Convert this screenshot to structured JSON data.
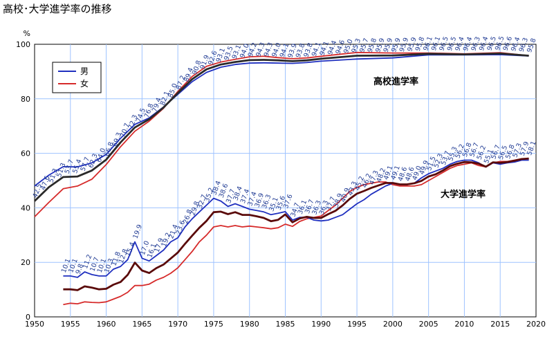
{
  "title": "高校･大学進学率の推移",
  "chart_data": {
    "type": "line",
    "ylabel": "%",
    "ylim": [
      0,
      100
    ],
    "xlim": [
      1950,
      2020
    ],
    "yticks": [
      0,
      20,
      40,
      60,
      80,
      100
    ],
    "xticks": [
      1950,
      1955,
      1960,
      1965,
      1970,
      1975,
      1980,
      1985,
      1990,
      1995,
      2000,
      2005,
      2010,
      2015,
      2020
    ],
    "grid": true,
    "legend": {
      "position": "top-left",
      "items": [
        {
          "name": "男",
          "color": "#1f2fbf"
        },
        {
          "name": "女",
          "color": "#d62a2a"
        }
      ]
    },
    "group_labels": {
      "high_school": "高校進学率",
      "university": "大学進学率"
    },
    "colors": {
      "male": "#1f2fbf",
      "female": "#d62a2a",
      "total": "#5a0a0a",
      "total_high": "#2a2a2a",
      "grid": "#9ec3ff",
      "plot_bg": "#ffffff"
    },
    "high_school": {
      "total": {
        "x": [
          1950,
          1952,
          1954,
          1956,
          1958,
          1960,
          1962,
          1964,
          1966,
          1968,
          1970,
          1972,
          1974,
          1976,
          1978,
          1980,
          1982,
          1984,
          1986,
          1988,
          1990,
          1995,
          2000,
          2005,
          2010,
          2015,
          2019
        ],
        "values": [
          42.5,
          47.6,
          51.3,
          51.5,
          53.7,
          57.7,
          64,
          69.5,
          72.5,
          76.8,
          82.1,
          87.2,
          90.8,
          92.6,
          93.5,
          94.2,
          94.3,
          94.1,
          93.8,
          94.1,
          94.7,
          95.8,
          95.9,
          96.5,
          96.3,
          96.6,
          95.8
        ]
      },
      "male": {
        "x": [
          1950,
          1952,
          1954,
          1956,
          1958,
          1960,
          1962,
          1964,
          1966,
          1968,
          1970,
          1972,
          1974,
          1976,
          1978,
          1980,
          1982,
          1984,
          1986,
          1988,
          1990,
          1995,
          2000,
          2005,
          2010,
          2015,
          2019
        ],
        "values": [
          48.0,
          52.0,
          55.1,
          55.0,
          56.5,
          59.6,
          65.5,
          70.6,
          73.0,
          77.0,
          81.6,
          86.3,
          89.7,
          91.6,
          92.6,
          93.1,
          93.2,
          93.1,
          93.0,
          93.3,
          93.8,
          94.6,
          95.0,
          96.1,
          96.1,
          96.2,
          95.7
        ]
      },
      "female": {
        "x": [
          1950,
          1952,
          1954,
          1956,
          1958,
          1960,
          1962,
          1964,
          1966,
          1968,
          1970,
          1972,
          1974,
          1976,
          1978,
          1980,
          1982,
          1984,
          1986,
          1988,
          1990,
          1995,
          2000,
          2005,
          2010,
          2015,
          2019
        ],
        "values": [
          36.7,
          42.0,
          47.0,
          48.0,
          50.5,
          55.9,
          62.4,
          68.1,
          71.8,
          76.5,
          82.7,
          88.2,
          91.9,
          93.5,
          94.5,
          95.4,
          95.6,
          95.1,
          94.7,
          95.0,
          95.6,
          97.0,
          96.8,
          96.8,
          96.5,
          96.9,
          95.8
        ]
      },
      "labels": [
        "42.5",
        "47.6",
        "51.3",
        "51.3",
        "53.7",
        "55.4",
        "57.7",
        "62.3",
        "64.0",
        "66.8",
        "69.3",
        "70.7",
        "72.3",
        "74.5",
        "76.8",
        "79.4",
        "82.1",
        "85.0",
        "87.2",
        "89.4",
        "90.8",
        "91.9",
        "92.6",
        "93.1",
        "93.5",
        "93.1",
        "94.0",
        "94.2",
        "94.3",
        "94.3",
        "94.0",
        "94.1",
        "93.9",
        "93.8",
        "93.8",
        "94.1",
        "94.1",
        "94.4",
        "94.6",
        "95.0",
        "95.3",
        "95.7",
        "95.8",
        "95.9",
        "95.9",
        "95.9",
        "95.9",
        "95.9",
        "95.8",
        "96.1",
        "96.1",
        "96.5",
        "96.5",
        "96.4",
        "96.4",
        "96.3",
        "96.4",
        "96.5",
        "96.5",
        "96.6",
        "96.4",
        "96.3",
        "95.8"
      ]
    },
    "university": {
      "x": [
        1954,
        1955,
        1956,
        1957,
        1958,
        1959,
        1960,
        1961,
        1962,
        1963,
        1964,
        1965,
        1966,
        1967,
        1968,
        1969,
        1970,
        1971,
        1972,
        1973,
        1974,
        1975,
        1976,
        1977,
        1978,
        1979,
        1980,
        1981,
        1982,
        1983,
        1984,
        1985,
        1986,
        1987,
        1988,
        1989,
        1990,
        1991,
        1992,
        1993,
        1994,
        1995,
        1996,
        1997,
        1998,
        1999,
        2000,
        2001,
        2002,
        2003,
        2004,
        2005,
        2006,
        2007,
        2008,
        2009,
        2010,
        2011,
        2012,
        2013,
        2014,
        2015,
        2016,
        2017,
        2018,
        2019
      ],
      "total": [
        10.1,
        10.1,
        9.8,
        11.2,
        10.7,
        10.1,
        10.3,
        11.8,
        12.8,
        15.4,
        19.9,
        17.0,
        16.1,
        17.9,
        19.2,
        21.4,
        23.6,
        26.8,
        29.8,
        32.7,
        35.2,
        38.4,
        38.6,
        37.7,
        38.4,
        37.4,
        37.4,
        36.9,
        36.3,
        35.1,
        35.6,
        37.6,
        34.7,
        36.1,
        36.7,
        36.3,
        36.3,
        37.7,
        38.9,
        40.9,
        43.3,
        45.2,
        46.2,
        47.3,
        48.2,
        49.1,
        49.1,
        48.6,
        48.6,
        49.0,
        49.9,
        51.5,
        52.3,
        53.7,
        55.3,
        56.2,
        56.8,
        56.7,
        56.2,
        55.1,
        56.7,
        56.5,
        56.8,
        57.3,
        57.9,
        58.1
      ],
      "male": [
        15.0,
        15.0,
        14.5,
        16.5,
        15.5,
        15.0,
        15.0,
        17.5,
        18.5,
        21.0,
        27.5,
        21.5,
        20.5,
        22.5,
        24.5,
        27.5,
        29.0,
        33.0,
        36.0,
        38.5,
        41.0,
        43.5,
        42.5,
        40.5,
        41.5,
        40.5,
        39.5,
        39.0,
        38.5,
        37.5,
        38.0,
        38.6,
        35.5,
        36.5,
        36.5,
        35.5,
        35.2,
        35.5,
        36.5,
        37.5,
        39.5,
        41.5,
        43.0,
        45.0,
        46.5,
        48.0,
        49.0,
        48.5,
        48.5,
        49.0,
        51.0,
        52.5,
        53.5,
        54.5,
        56.0,
        57.0,
        57.5,
        57.5,
        56.5,
        55.0,
        56.5,
        56.0,
        56.5,
        56.8,
        57.5,
        57.5
      ],
      "female": [
        4.5,
        5.0,
        4.8,
        5.5,
        5.3,
        5.2,
        5.5,
        6.5,
        7.5,
        9.0,
        11.5,
        11.5,
        12.0,
        13.5,
        14.5,
        16.0,
        18.0,
        21.0,
        24.0,
        27.5,
        30.0,
        33.0,
        33.5,
        33.0,
        33.5,
        33.0,
        33.3,
        33.0,
        32.7,
        32.3,
        32.7,
        34.0,
        33.2,
        35.0,
        36.0,
        36.5,
        37.0,
        39.0,
        41.0,
        43.5,
        46.0,
        47.5,
        48.5,
        49.0,
        49.5,
        49.5,
        48.5,
        48.0,
        48.0,
        48.0,
        48.5,
        50.0,
        51.5,
        53.0,
        54.5,
        55.5,
        56.0,
        56.5,
        55.5,
        55.0,
        56.5,
        57.0,
        57.0,
        57.5,
        58.0,
        58.0
      ]
    }
  }
}
